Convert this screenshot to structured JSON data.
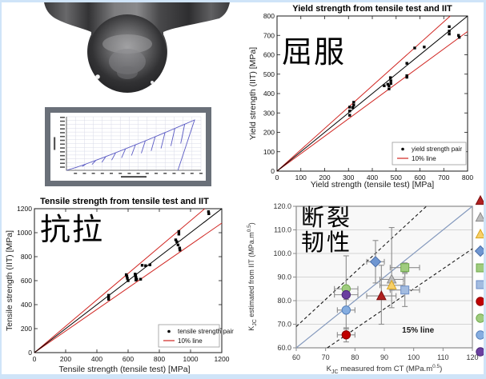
{
  "slide": {
    "background": "#ffffff",
    "edge_color": "#cfe4f8"
  },
  "annotations": {
    "yield_cn": "屈服",
    "tensile_cn": "抗拉",
    "toughness_cn_line1": "断裂",
    "toughness_cn_line2": "韧性"
  },
  "indenter": {
    "label": "spherical indenter 3D render"
  },
  "chart_data": [
    {
      "id": "load_depth",
      "type": "line",
      "title": "",
      "xlabel": "",
      "ylabel": "",
      "description": "IIT load-depth curve with repeated partial unloading cycles (axis text illegible at this scale)",
      "curve_color": "#5b5bc4",
      "unload_cycles": 13,
      "grid": true,
      "grid_color": "#d9dbe8"
    },
    {
      "id": "yield",
      "type": "scatter",
      "title": "Yield strength from tensile test and IIT",
      "xlabel": "Yield strength (tensile test)  [MPa]",
      "ylabel": "Yield strength (IIT) [MPa]",
      "xlim": [
        0,
        800
      ],
      "ylim": [
        0,
        800
      ],
      "xticks": [
        0,
        100,
        200,
        300,
        400,
        500,
        600,
        700,
        800
      ],
      "yticks": [
        0,
        100,
        200,
        300,
        400,
        500,
        600,
        700,
        800
      ],
      "identity_line_color": "#000000",
      "band_percent": 10,
      "band_line_color": "#d02420",
      "marker_color": "#000000",
      "legend": [
        {
          "marker": "point",
          "label": "yield strength pair"
        },
        {
          "marker": "line",
          "label": "10% line"
        }
      ],
      "points": [
        [
          305,
          330
        ],
        [
          305,
          310
        ],
        [
          305,
          288
        ],
        [
          318,
          328
        ],
        [
          322,
          340
        ],
        [
          322,
          355
        ],
        [
          450,
          440
        ],
        [
          465,
          448
        ],
        [
          470,
          440
        ],
        [
          470,
          424
        ],
        [
          476,
          482
        ],
        [
          478,
          466
        ],
        [
          478,
          452
        ],
        [
          545,
          556
        ],
        [
          545,
          492
        ],
        [
          545,
          484
        ],
        [
          578,
          635
        ],
        [
          618,
          640
        ],
        [
          723,
          745
        ],
        [
          723,
          722
        ],
        [
          723,
          707
        ],
        [
          762,
          700
        ],
        [
          765,
          690
        ]
      ]
    },
    {
      "id": "tensile",
      "type": "scatter",
      "title": "Tensile strength from tensile test and IIT",
      "xlabel": "Tensile strength (tensile test)  [MPa]",
      "ylabel": "Tensile strength (IIT) [MPa]",
      "xlim": [
        0,
        1200
      ],
      "ylim": [
        0,
        1200
      ],
      "xticks": [
        0,
        200,
        400,
        600,
        800,
        1000,
        1200
      ],
      "yticks": [
        0,
        200,
        400,
        600,
        800,
        1000,
        1200
      ],
      "identity_line_color": "#000000",
      "band_percent": 10,
      "band_line_color": "#d02420",
      "marker_color": "#000000",
      "legend": [
        {
          "marker": "point",
          "label": "tensile strength pair"
        },
        {
          "marker": "line",
          "label": "10% line"
        }
      ],
      "points": [
        [
          475,
          478
        ],
        [
          475,
          462
        ],
        [
          475,
          445
        ],
        [
          588,
          650
        ],
        [
          592,
          638
        ],
        [
          595,
          620
        ],
        [
          600,
          600
        ],
        [
          645,
          655
        ],
        [
          648,
          640
        ],
        [
          650,
          628
        ],
        [
          650,
          605
        ],
        [
          655,
          612
        ],
        [
          680,
          612
        ],
        [
          690,
          728
        ],
        [
          712,
          725
        ],
        [
          740,
          732
        ],
        [
          905,
          940
        ],
        [
          912,
          925
        ],
        [
          920,
          898
        ],
        [
          925,
          1010
        ],
        [
          925,
          988
        ],
        [
          930,
          872
        ],
        [
          932,
          855
        ],
        [
          1115,
          1175
        ],
        [
          1117,
          1158
        ]
      ]
    },
    {
      "id": "toughness",
      "type": "scatter",
      "title": "",
      "xlabel_parts": {
        "pre": "K",
        "sub": "JC",
        "mid": " measured from CT  (MPa.m",
        "sup": "0.5",
        "post": ")"
      },
      "ylabel_parts": {
        "pre": "K",
        "sub": "JC",
        "mid": " estimated from IIT (MPa.m",
        "sup": "0.5",
        "post": ")"
      },
      "xlim": [
        60,
        120
      ],
      "ylim": [
        60,
        120
      ],
      "xticks": [
        60,
        70,
        80,
        90,
        100,
        110,
        120
      ],
      "yticks": [
        60,
        70,
        80,
        90,
        100,
        110,
        120
      ],
      "ytick_decimals": 1,
      "plot_bg": "#f8f8f8",
      "grid_color": "#d4d4d4",
      "border_color": "#8a8a8a",
      "identity_line_color": "#8499bd",
      "band_percent": 15,
      "band_line_style": "dashed",
      "band_line_color": "#1a1a1a",
      "error_bar_color": "#8c8c8c",
      "annotation": {
        "text": "15% line",
        "x": 101.5,
        "y": 66.5
      },
      "series": [
        {
          "name": "red-triangle",
          "marker": "triangle",
          "fill": "#b02020",
          "edge": "#7d0f0f",
          "x": 89,
          "y": 82,
          "xerr": 5,
          "yerr_plus": 13,
          "yerr_minus": 12
        },
        {
          "name": "gray-triangle",
          "marker": "triangle",
          "fill": "#bcbcbc",
          "edge": "#8c8c8c",
          "x": 92.5,
          "y": 89,
          "xerr": 4,
          "yerr_plus": 22,
          "yerr_minus": 12
        },
        {
          "name": "yellow-triangle",
          "marker": "triangle",
          "fill": "#f7d069",
          "edge": "#d9a520",
          "x": 92.5,
          "y": 86.5,
          "xerr": 4,
          "yerr_plus": 2,
          "yerr_minus": 2
        },
        {
          "name": "blue-diamond",
          "marker": "diamond",
          "fill": "#6f96d1",
          "edge": "#4a6ea9",
          "x": 87,
          "y": 96.5,
          "xerr": 3,
          "yerr_plus": 9,
          "yerr_minus": 9
        },
        {
          "name": "green-square",
          "marker": "square",
          "fill": "#9fcc7e",
          "edge": "#6fa84c",
          "x": 97,
          "y": 94,
          "xerr": 5,
          "yerr_plus": 2,
          "yerr_minus": 2
        },
        {
          "name": "blue-square",
          "marker": "square",
          "fill": "#a3bce0",
          "edge": "#6d8ec7",
          "x": 97,
          "y": 84.5,
          "xerr": 5,
          "yerr_plus": 7,
          "yerr_minus": 7
        },
        {
          "name": "red-circle",
          "marker": "circle",
          "fill": "#c00000",
          "edge": "#8a0000",
          "x": 77,
          "y": 65.5,
          "xerr": 3,
          "yerr_plus": 3,
          "yerr_minus": 3
        },
        {
          "name": "green-circle",
          "marker": "circle",
          "fill": "#9fcc7e",
          "edge": "#6fa84c",
          "x": 77,
          "y": 85,
          "xerr": 4,
          "yerr_plus": 14,
          "yerr_minus": 3
        },
        {
          "name": "blue-circle",
          "marker": "circle",
          "fill": "#85ade0",
          "edge": "#5580bb",
          "x": 77,
          "y": 76,
          "xerr": 3,
          "yerr_plus": 8,
          "yerr_minus": 8
        },
        {
          "name": "purple-circle",
          "marker": "circle",
          "fill": "#6a3fa0",
          "edge": "#4c2a78",
          "x": 77,
          "y": 82.5,
          "xerr": 4,
          "yerr_plus": 2,
          "yerr_minus": 2
        }
      ],
      "legend_marker_order": [
        "red-triangle",
        "gray-triangle",
        "yellow-triangle",
        "blue-diamond",
        "green-square",
        "blue-square",
        "red-circle",
        "green-circle",
        "blue-circle",
        "purple-circle"
      ]
    }
  ]
}
